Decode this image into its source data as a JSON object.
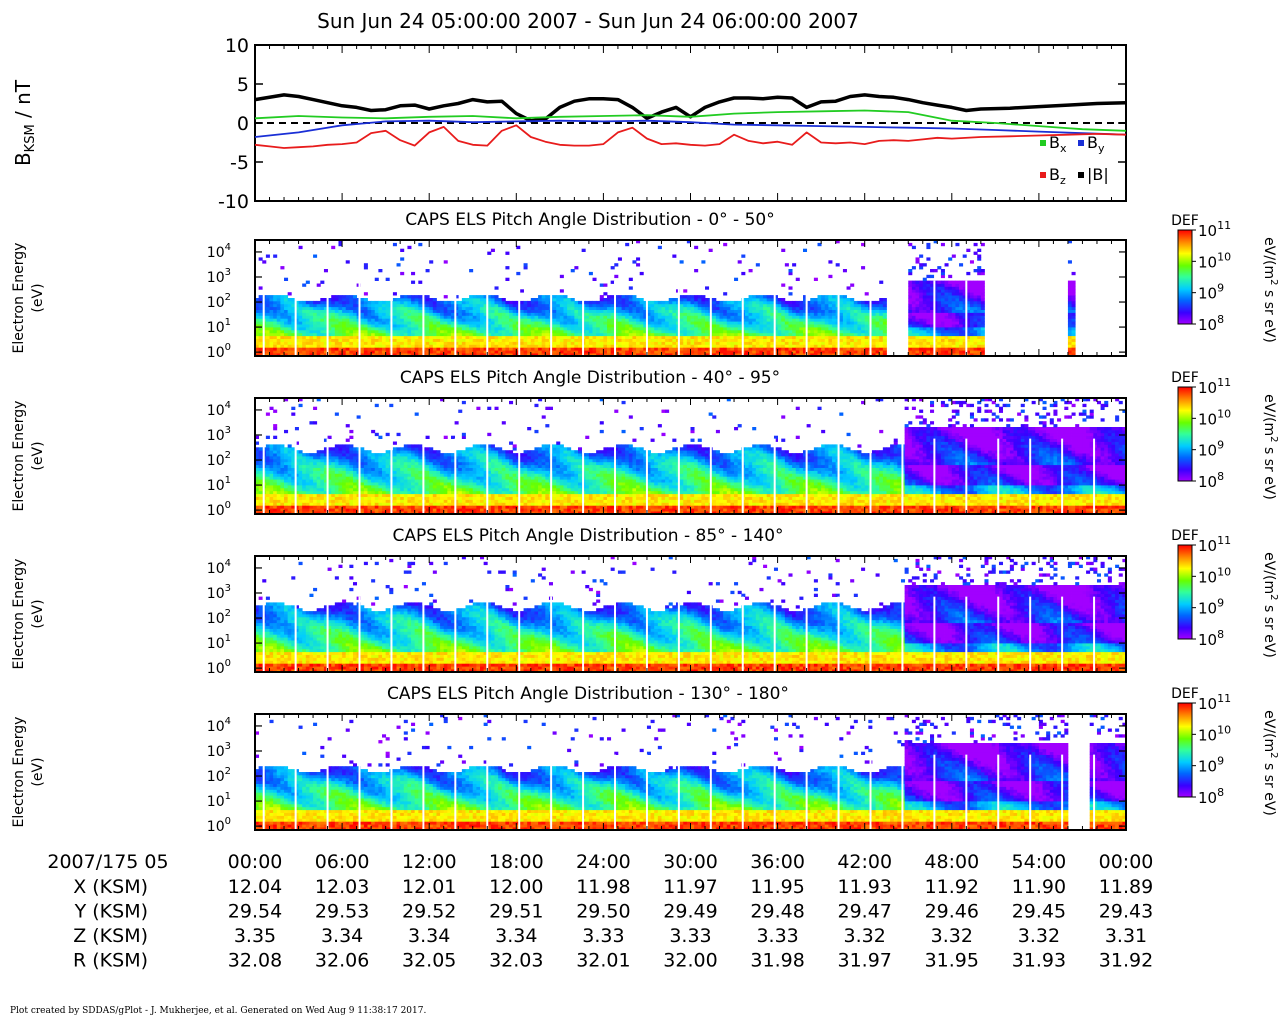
{
  "title": "Sun Jun 24 05:00:00 2007 - Sun Jun 24 06:00:00 2007",
  "colors": {
    "bx": "#22cc22",
    "by": "#1a2fd6",
    "bz": "#e81c1c",
    "bmag": "#000000"
  },
  "chart_data": [
    {
      "type": "line",
      "ylabel": "BKSM / nT",
      "ylabel_main": "B",
      "ylabel_sub": "KSM",
      "ylabel_unit": " / nT",
      "ylim": [
        -10,
        10
      ],
      "yticks": [
        "10",
        "5",
        "0",
        "-5",
        "-10"
      ],
      "xlim_minutes": [
        0,
        60
      ],
      "zero_line": "dashed",
      "legend_position": "bottom-right",
      "legend": [
        {
          "key": "bx",
          "label": "B",
          "sub": "x"
        },
        {
          "key": "by",
          "label": "B",
          "sub": "y"
        },
        {
          "key": "bz",
          "label": "B",
          "sub": "z"
        },
        {
          "key": "bmag",
          "label": "|B|",
          "sub": ""
        }
      ],
      "series": [
        {
          "key": "bmag",
          "x": [
            0,
            2,
            3,
            4,
            5,
            6,
            7,
            8,
            9,
            10,
            11,
            12,
            13,
            14,
            15,
            16,
            17,
            18,
            19,
            20,
            21,
            22,
            23,
            24,
            25,
            26,
            27,
            28,
            29,
            30,
            31,
            32,
            33,
            34,
            35,
            36,
            37,
            38,
            39,
            40,
            41,
            42,
            43,
            44,
            45,
            46,
            47,
            48,
            49,
            50,
            52,
            54,
            56,
            58,
            60
          ],
          "values": [
            3.0,
            3.6,
            3.4,
            3.0,
            2.6,
            2.2,
            2.0,
            1.6,
            1.7,
            2.2,
            2.3,
            1.8,
            2.2,
            2.5,
            3.0,
            2.7,
            2.8,
            1.2,
            0.3,
            0.5,
            2.0,
            2.8,
            3.1,
            3.1,
            3.0,
            2.0,
            0.6,
            1.4,
            2.0,
            0.8,
            2.0,
            2.7,
            3.2,
            3.2,
            3.1,
            3.3,
            3.2,
            2.0,
            2.7,
            2.8,
            3.4,
            3.6,
            3.4,
            3.3,
            3.0,
            2.6,
            2.3,
            2.0,
            1.6,
            1.8,
            1.9,
            2.1,
            2.3,
            2.5,
            2.6
          ]
        },
        {
          "key": "bx",
          "x": [
            0,
            3,
            6,
            9,
            12,
            15,
            18,
            21,
            24,
            27,
            30,
            33,
            36,
            39,
            42,
            45,
            48,
            51,
            54,
            57,
            60
          ],
          "values": [
            0.6,
            0.9,
            0.7,
            0.6,
            0.8,
            0.9,
            0.6,
            0.8,
            0.9,
            1.0,
            0.8,
            1.2,
            1.4,
            1.5,
            1.6,
            1.4,
            0.3,
            0.0,
            -0.4,
            -0.8,
            -1.0
          ]
        },
        {
          "key": "by",
          "x": [
            0,
            3,
            6,
            9,
            12,
            15,
            18,
            21,
            24,
            27,
            30,
            33,
            36,
            39,
            42,
            45,
            48,
            51,
            54,
            57,
            60
          ],
          "values": [
            -1.8,
            -1.2,
            -0.3,
            0.2,
            0.3,
            0.1,
            0.2,
            0.3,
            0.2,
            0.3,
            0.1,
            -0.2,
            -0.3,
            -0.4,
            -0.5,
            -0.6,
            -0.7,
            -0.9,
            -1.1,
            -1.3,
            -1.5
          ]
        },
        {
          "key": "bz",
          "x": [
            0,
            1,
            2,
            3,
            4,
            5,
            6,
            7,
            8,
            9,
            10,
            11,
            12,
            13,
            14,
            15,
            16,
            17,
            18,
            19,
            20,
            21,
            22,
            23,
            24,
            25,
            26,
            27,
            28,
            29,
            30,
            31,
            32,
            33,
            34,
            35,
            36,
            37,
            38,
            39,
            40,
            41,
            42,
            43,
            44,
            45,
            46,
            47,
            48,
            50,
            52,
            54,
            56,
            58,
            60
          ],
          "values": [
            -2.8,
            -3.0,
            -3.2,
            -3.1,
            -3.0,
            -2.8,
            -2.7,
            -2.5,
            -1.3,
            -1.0,
            -2.2,
            -2.9,
            -1.2,
            -0.5,
            -2.3,
            -2.8,
            -2.9,
            -1.0,
            -0.3,
            -1.8,
            -2.4,
            -2.8,
            -2.9,
            -2.9,
            -2.7,
            -1.2,
            -0.6,
            -2.0,
            -2.7,
            -2.6,
            -2.8,
            -2.9,
            -2.7,
            -1.5,
            -2.3,
            -2.6,
            -2.4,
            -2.8,
            -1.2,
            -2.5,
            -2.6,
            -2.5,
            -2.7,
            -2.3,
            -2.2,
            -2.3,
            -2.1,
            -1.9,
            -2.0,
            -1.8,
            -1.7,
            -1.6,
            -1.5,
            -1.4,
            -1.5
          ]
        }
      ]
    },
    {
      "type": "heatmap",
      "title": "CAPS ELS Pitch Angle Distribution - 0° - 50°",
      "ylabel": "Electron Energy (eV)",
      "ylabel_lines": [
        "Electron Energy",
        "(eV)"
      ],
      "yscale": "log",
      "ylim": [
        0.7,
        30000
      ],
      "yticks": [
        {
          "base": "10",
          "exp": "4",
          "v": 10000
        },
        {
          "base": "10",
          "exp": "3",
          "v": 1000
        },
        {
          "base": "10",
          "exp": "2",
          "v": 100
        },
        {
          "base": "10",
          "exp": "1",
          "v": 10
        },
        {
          "base": "10",
          "exp": "0",
          "v": 1
        }
      ],
      "z_label": "eV/(m² s sr eV)",
      "z_label_main": "eV/(m",
      "z_label_sup": "2",
      "z_label_tail": " s sr eV)",
      "z_title": "DEF",
      "z_scale": "log",
      "zlim": [
        100000000.0,
        100000000000.0
      ],
      "z_ticks": [
        {
          "base": "10",
          "exp": "11"
        },
        {
          "base": "10",
          "exp": "10"
        },
        {
          "base": "10",
          "exp": "9"
        },
        {
          "base": "10",
          "exp": "8"
        }
      ],
      "gaps_minutes": [
        [
          43.4,
          45.0
        ],
        [
          50.2,
          55.8
        ],
        [
          56.3,
          60
        ]
      ],
      "upper_cutoff_eV": 150,
      "notes": "white vertical stripes approximately every minute"
    },
    {
      "type": "heatmap",
      "title": "CAPS ELS Pitch Angle Distribution - 40° - 95°",
      "ylabel": "Electron Energy (eV)",
      "ylabel_lines": [
        "Electron Energy",
        "(eV)"
      ],
      "yscale": "log",
      "ylim": [
        0.7,
        30000
      ],
      "yticks": [
        {
          "base": "10",
          "exp": "4",
          "v": 10000
        },
        {
          "base": "10",
          "exp": "3",
          "v": 1000
        },
        {
          "base": "10",
          "exp": "2",
          "v": 100
        },
        {
          "base": "10",
          "exp": "1",
          "v": 10
        },
        {
          "base": "10",
          "exp": "0",
          "v": 1
        }
      ],
      "z_label": "eV/(m² s sr eV)",
      "z_label_main": "eV/(m",
      "z_label_sup": "2",
      "z_label_tail": " s sr eV)",
      "z_title": "DEF",
      "z_scale": "log",
      "zlim": [
        100000000.0,
        100000000000.0
      ],
      "z_ticks": [
        {
          "base": "10",
          "exp": "11"
        },
        {
          "base": "10",
          "exp": "10"
        },
        {
          "base": "10",
          "exp": "9"
        },
        {
          "base": "10",
          "exp": "8"
        }
      ],
      "gaps_minutes": [],
      "upper_cutoff_eV": 300
    },
    {
      "type": "heatmap",
      "title": "CAPS ELS Pitch Angle Distribution - 85° - 140°",
      "ylabel": "Electron Energy (eV)",
      "ylabel_lines": [
        "Electron Energy",
        "(eV)"
      ],
      "yscale": "log",
      "ylim": [
        0.7,
        30000
      ],
      "yticks": [
        {
          "base": "10",
          "exp": "4",
          "v": 10000
        },
        {
          "base": "10",
          "exp": "3",
          "v": 1000
        },
        {
          "base": "10",
          "exp": "2",
          "v": 100
        },
        {
          "base": "10",
          "exp": "1",
          "v": 10
        },
        {
          "base": "10",
          "exp": "0",
          "v": 1
        }
      ],
      "z_label": "eV/(m² s sr eV)",
      "z_label_main": "eV/(m",
      "z_label_sup": "2",
      "z_label_tail": " s sr eV)",
      "z_title": "DEF",
      "z_scale": "log",
      "zlim": [
        100000000.0,
        100000000000.0
      ],
      "z_ticks": [
        {
          "base": "10",
          "exp": "11"
        },
        {
          "base": "10",
          "exp": "10"
        },
        {
          "base": "10",
          "exp": "9"
        },
        {
          "base": "10",
          "exp": "8"
        }
      ],
      "gaps_minutes": [],
      "upper_cutoff_eV": 300
    },
    {
      "type": "heatmap",
      "title": "CAPS ELS Pitch Angle Distribution - 130° - 180°",
      "ylabel": "Electron Energy (eV)",
      "ylabel_lines": [
        "Electron Energy",
        "(eV)"
      ],
      "yscale": "log",
      "ylim": [
        0.7,
        30000
      ],
      "yticks": [
        {
          "base": "10",
          "exp": "4",
          "v": 10000
        },
        {
          "base": "10",
          "exp": "3",
          "v": 1000
        },
        {
          "base": "10",
          "exp": "2",
          "v": 100
        },
        {
          "base": "10",
          "exp": "1",
          "v": 10
        },
        {
          "base": "10",
          "exp": "0",
          "v": 1
        }
      ],
      "z_label": "eV/(m² s sr eV)",
      "z_label_main": "eV/(m",
      "z_label_sup": "2",
      "z_label_tail": " s sr eV)",
      "z_title": "DEF",
      "z_scale": "log",
      "zlim": [
        100000000.0,
        100000000000.0
      ],
      "z_ticks": [
        {
          "base": "10",
          "exp": "11"
        },
        {
          "base": "10",
          "exp": "10"
        },
        {
          "base": "10",
          "exp": "9"
        },
        {
          "base": "10",
          "exp": "8"
        }
      ],
      "gaps_minutes": [
        [
          55.8,
          57.5
        ]
      ],
      "upper_cutoff_eV": 200
    }
  ],
  "ephemeris": {
    "time_header": "2007/175 05",
    "times": [
      "00:00",
      "06:00",
      "12:00",
      "18:00",
      "24:00",
      "30:00",
      "36:00",
      "42:00",
      "48:00",
      "54:00",
      "00:00"
    ],
    "rows": [
      {
        "label": "X (KSM)",
        "values": [
          "12.04",
          "12.03",
          "12.01",
          "12.00",
          "11.98",
          "11.97",
          "11.95",
          "11.93",
          "11.92",
          "11.90",
          "11.89"
        ]
      },
      {
        "label": "Y (KSM)",
        "values": [
          "29.54",
          "29.53",
          "29.52",
          "29.51",
          "29.50",
          "29.49",
          "29.48",
          "29.47",
          "29.46",
          "29.45",
          "29.43"
        ]
      },
      {
        "label": "Z (KSM)",
        "values": [
          "3.35",
          "3.34",
          "3.34",
          "3.34",
          "3.33",
          "3.33",
          "3.33",
          "3.32",
          "3.32",
          "3.32",
          "3.31"
        ]
      },
      {
        "label": "R (KSM)",
        "values": [
          "32.08",
          "32.06",
          "32.05",
          "32.03",
          "32.01",
          "32.00",
          "31.98",
          "31.97",
          "31.95",
          "31.93",
          "31.92"
        ]
      }
    ]
  },
  "footer": "Plot created by SDDAS/gPlot - J. Mukherjee, et al.  Generated on Wed Aug 9 11:38:17 2017."
}
